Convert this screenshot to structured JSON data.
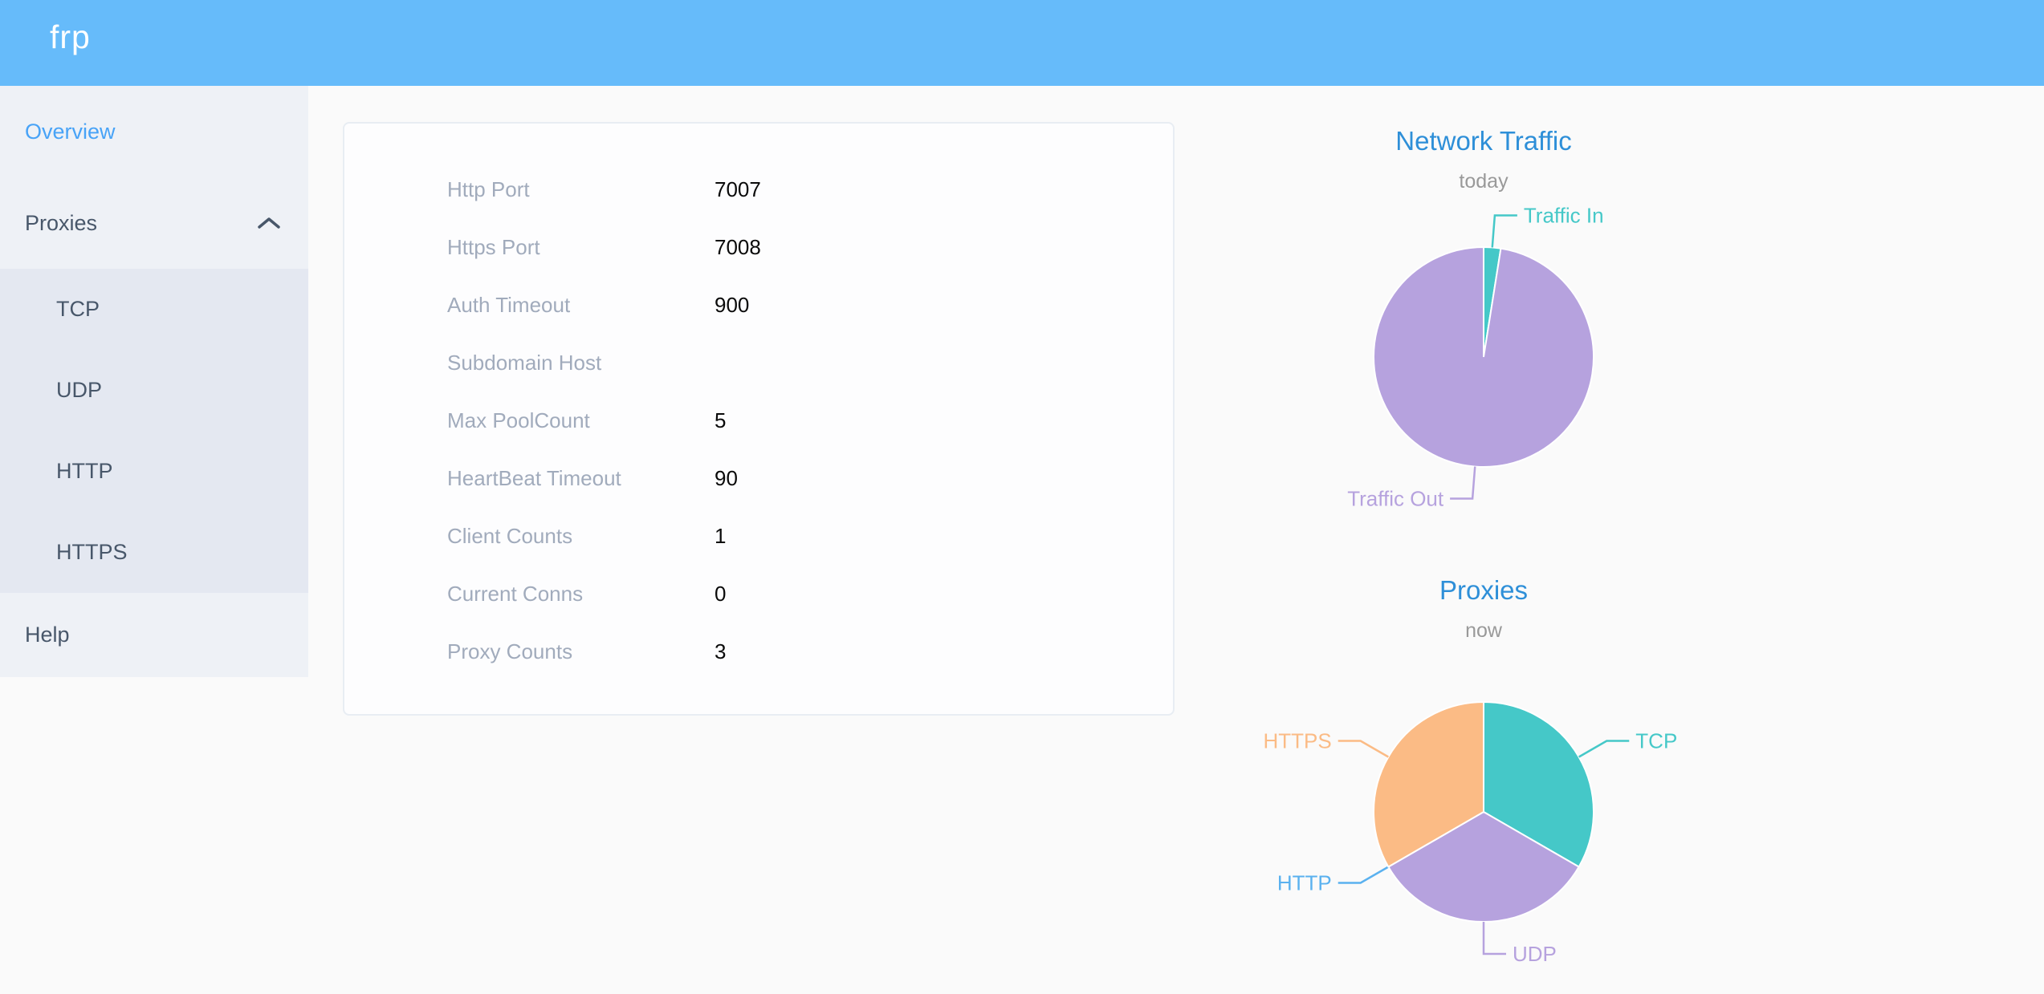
{
  "header": {
    "logo_text": "frp"
  },
  "colors": {
    "header_bg": "#66bbfa",
    "sidebar_bg": "#eef1f6",
    "submenu_bg": "#e4e8f1",
    "menu_text": "#48576a",
    "active_menu_text": "#48a3f7",
    "card_border": "#e8edf3",
    "form_label_gray": "#a1abbc",
    "chart_title_blue": "#2e8fd8",
    "chart_subtitle_gray": "#999999",
    "pie_teal": "#45c8c8",
    "pie_purple": "#b6a2de",
    "pie_blue": "#5ab1ef",
    "pie_orange": "#fbbb85"
  },
  "sidebar": {
    "active_item": "Overview",
    "items": [
      {
        "label": "Overview"
      },
      {
        "label": "Proxies",
        "expanded": true
      },
      {
        "label": "Help"
      }
    ],
    "proxies_children": [
      {
        "label": "TCP"
      },
      {
        "label": "UDP"
      },
      {
        "label": "HTTP"
      },
      {
        "label": "HTTPS"
      }
    ]
  },
  "server_info": {
    "rows": [
      {
        "label": "Http Port",
        "value": "7007"
      },
      {
        "label": "Https Port",
        "value": "7008"
      },
      {
        "label": "Auth Timeout",
        "value": "900"
      },
      {
        "label": "Subdomain Host",
        "value": ""
      },
      {
        "label": "Max PoolCount",
        "value": "5"
      },
      {
        "label": "HeartBeat Timeout",
        "value": "90"
      },
      {
        "label": "Client Counts",
        "value": "1"
      },
      {
        "label": "Current Conns",
        "value": "0"
      },
      {
        "label": "Proxy Counts",
        "value": "3"
      }
    ]
  },
  "chart_data": [
    {
      "type": "pie",
      "title": "Network Traffic",
      "subtitle": "today",
      "legend": "none",
      "labels": "outside-with-leader-lines",
      "title_color": "#2e8fd8",
      "subtitle_color": "#999999",
      "slices": [
        {
          "label": "Traffic In",
          "value": 2.5,
          "unit": "% of today's traffic",
          "color": "#45c8c8"
        },
        {
          "label": "Traffic Out",
          "value": 97.5,
          "unit": "% of today's traffic",
          "color": "#b6a2de"
        }
      ]
    },
    {
      "type": "pie",
      "title": "Proxies",
      "subtitle": "now",
      "legend": "none",
      "labels": "outside-with-leader-lines",
      "title_color": "#2e8fd8",
      "subtitle_color": "#999999",
      "slices": [
        {
          "label": "TCP",
          "value": 1,
          "unit": "proxies",
          "color": "#45c8c8"
        },
        {
          "label": "UDP",
          "value": 1,
          "unit": "proxies",
          "color": "#b6a2de"
        },
        {
          "label": "HTTP",
          "value": 0,
          "unit": "proxies",
          "color": "#5ab1ef"
        },
        {
          "label": "HTTPS",
          "value": 1,
          "unit": "proxies",
          "color": "#fbbb85"
        }
      ]
    }
  ]
}
